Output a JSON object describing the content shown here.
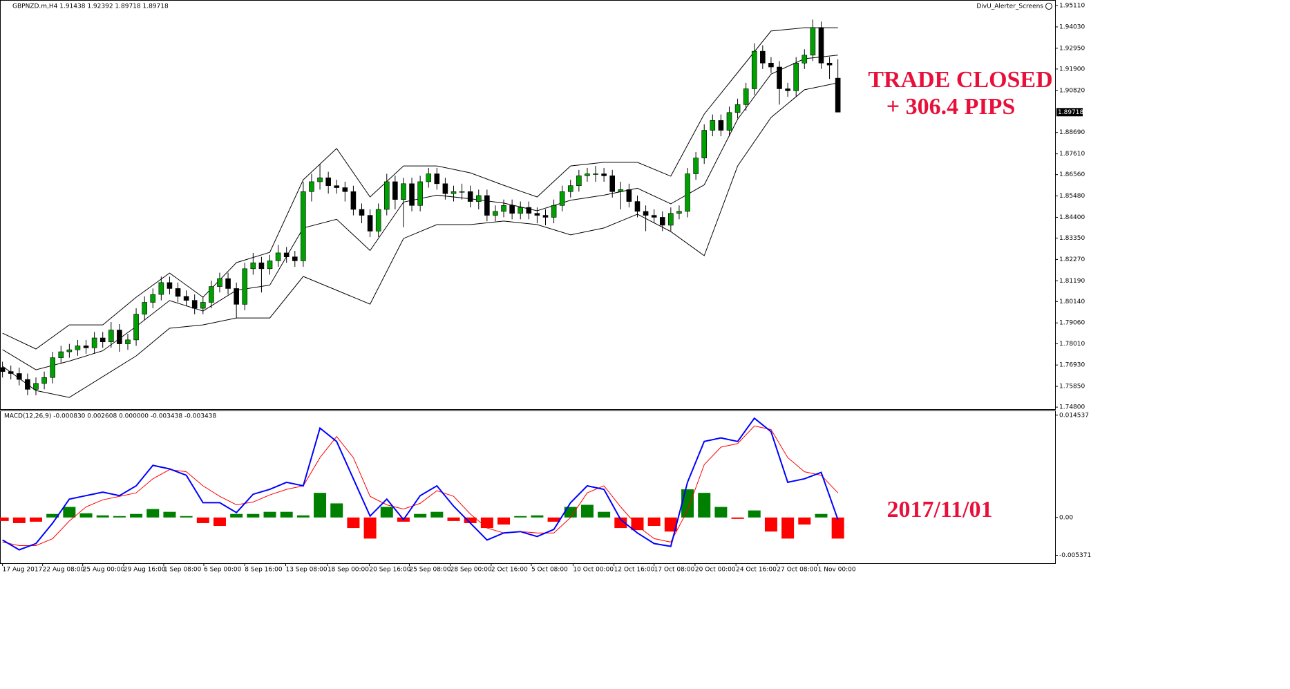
{
  "expert": "DivU_Alerter_Screens",
  "annotations": {
    "trade": "TRADE CLOSED",
    "pips": "+ 306.4 PIPS",
    "date": "2017/11/01"
  },
  "chart_data": [
    {
      "type": "candlestick",
      "title": "GBPNZD.m,H4  1.91438 1.92392 1.89718 1.89718",
      "up_color": "#00a000",
      "down_color": "#000000",
      "wick_color": "#000000",
      "xlim": [
        -0.3,
        126
      ],
      "ylim": [
        1.747,
        1.9539
      ],
      "open": [
        1.768,
        1.766,
        1.765,
        1.762,
        1.757,
        1.76,
        1.763,
        1.773,
        1.776,
        1.777,
        1.779,
        1.778,
        1.783,
        1.781,
        1.787,
        1.78,
        1.782,
        1.795,
        1.801,
        1.805,
        1.811,
        1.808,
        1.804,
        1.802,
        1.798,
        1.801,
        1.809,
        1.813,
        1.808,
        1.8,
        1.818,
        1.821,
        1.818,
        1.822,
        1.826,
        1.824,
        1.822,
        1.857,
        1.862,
        1.864,
        1.86,
        1.859,
        1.857,
        1.848,
        1.845,
        1.837,
        1.848,
        1.862,
        1.853,
        1.861,
        1.85,
        1.862,
        1.866,
        1.861,
        1.856,
        1.857,
        1.857,
        1.852,
        1.855,
        1.845,
        1.847,
        1.85,
        1.846,
        1.849,
        1.846,
        1.845,
        1.844,
        1.85,
        1.857,
        1.86,
        1.865,
        1.866,
        1.866,
        1.865,
        1.857,
        1.858,
        1.852,
        1.847,
        1.845,
        1.844,
        1.84,
        1.846,
        1.847,
        1.866,
        1.874,
        1.888,
        1.893,
        1.888,
        1.897,
        1.901,
        1.909,
        1.928,
        1.922,
        1.92,
        1.909,
        1.908,
        1.922,
        1.926,
        1.94,
        1.922,
        1.91438
      ],
      "high": [
        1.771,
        1.769,
        1.768,
        1.765,
        1.763,
        1.766,
        1.776,
        1.779,
        1.78,
        1.782,
        1.782,
        1.786,
        1.786,
        1.791,
        1.79,
        1.785,
        1.798,
        1.804,
        1.808,
        1.814,
        1.814,
        1.811,
        1.807,
        1.805,
        1.804,
        1.812,
        1.816,
        1.816,
        1.811,
        1.821,
        1.826,
        1.824,
        1.825,
        1.83,
        1.829,
        1.827,
        1.862,
        1.866,
        1.871,
        1.867,
        1.863,
        1.862,
        1.86,
        1.851,
        1.848,
        1.851,
        1.866,
        1.865,
        1.864,
        1.864,
        1.865,
        1.869,
        1.869,
        1.864,
        1.86,
        1.861,
        1.86,
        1.858,
        1.858,
        1.85,
        1.853,
        1.853,
        1.852,
        1.852,
        1.849,
        1.848,
        1.853,
        1.86,
        1.863,
        1.868,
        1.869,
        1.87,
        1.869,
        1.868,
        1.862,
        1.861,
        1.855,
        1.85,
        1.848,
        1.847,
        1.849,
        1.85,
        1.869,
        1.877,
        1.891,
        1.896,
        1.896,
        1.9,
        1.904,
        1.912,
        1.932,
        1.931,
        1.925,
        1.923,
        1.912,
        1.925,
        1.929,
        1.944,
        1.943,
        1.925,
        1.92392
      ],
      "low": [
        1.763,
        1.762,
        1.759,
        1.754,
        1.754,
        1.757,
        1.76,
        1.77,
        1.773,
        1.774,
        1.775,
        1.775,
        1.778,
        1.778,
        1.776,
        1.777,
        1.779,
        1.792,
        1.798,
        1.802,
        1.805,
        1.801,
        1.799,
        1.795,
        1.795,
        1.798,
        1.806,
        1.805,
        1.793,
        1.797,
        1.815,
        1.806,
        1.815,
        1.819,
        1.821,
        1.819,
        1.819,
        1.852,
        1.858,
        1.856,
        1.856,
        1.852,
        1.845,
        1.841,
        1.834,
        1.834,
        1.845,
        1.848,
        1.839,
        1.847,
        1.847,
        1.859,
        1.858,
        1.853,
        1.852,
        1.853,
        1.849,
        1.848,
        1.842,
        1.842,
        1.844,
        1.843,
        1.843,
        1.843,
        1.841,
        1.84,
        1.841,
        1.847,
        1.854,
        1.857,
        1.862,
        1.862,
        1.862,
        1.854,
        1.848,
        1.849,
        1.844,
        1.837,
        1.841,
        1.837,
        1.837,
        1.843,
        1.844,
        1.863,
        1.871,
        1.885,
        1.885,
        1.885,
        1.894,
        1.898,
        1.906,
        1.919,
        1.917,
        1.901,
        1.905,
        1.905,
        1.919,
        1.923,
        1.919,
        1.914,
        1.89718
      ],
      "close": [
        1.766,
        1.765,
        1.762,
        1.757,
        1.76,
        1.763,
        1.773,
        1.776,
        1.777,
        1.779,
        1.778,
        1.783,
        1.781,
        1.787,
        1.78,
        1.782,
        1.795,
        1.801,
        1.805,
        1.811,
        1.808,
        1.804,
        1.802,
        1.798,
        1.801,
        1.809,
        1.813,
        1.808,
        1.8,
        1.818,
        1.821,
        1.818,
        1.822,
        1.826,
        1.824,
        1.822,
        1.857,
        1.862,
        1.864,
        1.86,
        1.859,
        1.857,
        1.848,
        1.845,
        1.837,
        1.848,
        1.862,
        1.853,
        1.861,
        1.85,
        1.862,
        1.866,
        1.861,
        1.856,
        1.857,
        1.857,
        1.852,
        1.855,
        1.845,
        1.847,
        1.85,
        1.846,
        1.849,
        1.846,
        1.845,
        1.844,
        1.85,
        1.857,
        1.86,
        1.865,
        1.866,
        1.866,
        1.865,
        1.857,
        1.858,
        1.852,
        1.847,
        1.845,
        1.844,
        1.84,
        1.846,
        1.847,
        1.866,
        1.874,
        1.888,
        1.893,
        1.888,
        1.897,
        1.901,
        1.909,
        1.928,
        1.922,
        1.92,
        1.909,
        1.908,
        1.922,
        1.926,
        1.94,
        1.922,
        1.921,
        1.89718
      ],
      "bands": {
        "color": "#000000",
        "x": [
          0,
          4,
          8,
          12,
          16,
          20,
          24,
          28,
          32,
          36,
          40,
          44,
          48,
          52,
          56,
          60,
          64,
          68,
          72,
          76,
          80,
          84,
          88,
          92,
          96,
          100
        ],
        "upper": [
          1.7854,
          1.7774,
          1.7896,
          1.7896,
          1.8036,
          1.8158,
          1.8036,
          1.8211,
          1.8263,
          1.863,
          1.8788,
          1.8543,
          1.87,
          1.87,
          1.8665,
          1.8602,
          1.8543,
          1.87,
          1.8718,
          1.8718,
          1.8648,
          1.8962,
          1.9172,
          1.9382,
          1.9399,
          1.9399
        ],
        "middle": [
          1.7771,
          1.7669,
          1.7713,
          1.7765,
          1.7888,
          1.8019,
          1.7966,
          1.8071,
          1.8097,
          1.8386,
          1.843,
          1.8272,
          1.8517,
          1.8552,
          1.8534,
          1.8512,
          1.8473,
          1.8526,
          1.8552,
          1.8587,
          1.8508,
          1.8604,
          1.8936,
          1.9164,
          1.9242,
          1.926
        ],
        "lower": [
          1.7687,
          1.7564,
          1.7529,
          1.7634,
          1.7739,
          1.7879,
          1.7896,
          1.7931,
          1.7931,
          1.8141,
          1.8071,
          1.8001,
          1.8333,
          1.8403,
          1.8403,
          1.8421,
          1.8403,
          1.8351,
          1.8386,
          1.8456,
          1.8368,
          1.8246,
          1.87,
          1.8945,
          1.9085,
          1.912
        ]
      },
      "last_price": 1.89718,
      "yticks": [
        {
          "value": 1.9511,
          "label": "1.95110"
        },
        {
          "value": 1.9403,
          "label": "1.94030"
        },
        {
          "value": 1.9295,
          "label": "1.92950"
        },
        {
          "value": 1.919,
          "label": "1.91900"
        },
        {
          "value": 1.9082,
          "label": "1.90820"
        },
        {
          "value": 1.8869,
          "label": "1.88690"
        },
        {
          "value": 1.8761,
          "label": "1.87610"
        },
        {
          "value": 1.8656,
          "label": "1.86560"
        },
        {
          "value": 1.8548,
          "label": "1.85480"
        },
        {
          "value": 1.844,
          "label": "1.84400"
        },
        {
          "value": 1.8335,
          "label": "1.83350"
        },
        {
          "value": 1.8227,
          "label": "1.82270"
        },
        {
          "value": 1.8119,
          "label": "1.81190"
        },
        {
          "value": 1.8014,
          "label": "1.80140"
        },
        {
          "value": 1.7906,
          "label": "1.79060"
        },
        {
          "value": 1.7801,
          "label": "1.78010"
        },
        {
          "value": 1.7693,
          "label": "1.76930"
        },
        {
          "value": 1.7585,
          "label": "1.75850"
        },
        {
          "value": 1.748,
          "label": "1.74800"
        }
      ]
    },
    {
      "type": "macd",
      "title": "MACD(12,26,9) -0.000830 0.002608 0.000000 -0.003438 -0.003438",
      "xlim": [
        -0.3,
        126
      ],
      "ylim": [
        -0.0065,
        0.0152
      ],
      "yticks": [
        0.014537,
        {
          "value": 0,
          "label": "0.00"
        },
        -0.005371
      ],
      "xticks": [
        {
          "value": 0,
          "label": "17 Aug 2017"
        },
        {
          "value": 4.8,
          "label": "22 Aug 08:00"
        },
        {
          "value": 9.6,
          "label": "25 Aug 00:00"
        },
        {
          "value": 14.5,
          "label": "29 Aug 16:00"
        },
        {
          "value": 19.3,
          "label": "1 Sep 08:00"
        },
        {
          "value": 24.1,
          "label": "6 Sep 00:00"
        },
        {
          "value": 29,
          "label": "8 Sep 16:00"
        },
        {
          "value": 33.9,
          "label": "13 Sep 08:00"
        },
        {
          "value": 38.9,
          "label": "18 Sep 00:00"
        },
        {
          "value": 43.9,
          "label": "20 Sep 16:00"
        },
        {
          "value": 48.7,
          "label": "25 Sep 08:00"
        },
        {
          "value": 53.6,
          "label": "28 Sep 00:00"
        },
        {
          "value": 58.5,
          "label": "2 Oct 16:00"
        },
        {
          "value": 63.3,
          "label": "5 Oct 08:00"
        },
        {
          "value": 68.3,
          "label": "10 Oct 00:00"
        },
        {
          "value": 73.2,
          "label": "12 Oct 16:00"
        },
        {
          "value": 78,
          "label": "17 Oct 08:00"
        },
        {
          "value": 82.9,
          "label": "20 Oct 00:00"
        },
        {
          "value": 87.8,
          "label": "24 Oct 16:00"
        },
        {
          "value": 92.7,
          "label": "27 Oct 08:00"
        },
        {
          "value": 97.6,
          "label": "1 Nov 00:00"
        }
      ],
      "x": [
        0,
        2,
        4,
        6,
        8,
        10,
        12,
        14,
        16,
        18,
        20,
        22,
        24,
        26,
        28,
        30,
        32,
        34,
        36,
        38,
        40,
        42,
        44,
        46,
        48,
        50,
        52,
        54,
        56,
        58,
        60,
        62,
        64,
        66,
        68,
        70,
        72,
        74,
        76,
        78,
        80,
        82,
        84,
        86,
        88,
        90,
        92,
        94,
        96,
        98,
        100
      ],
      "main": {
        "color": "#0000ff",
        "values": [
          -0.0032,
          -0.0046,
          -0.0037,
          -0.0008,
          0.0026,
          0.0031,
          0.0036,
          0.0031,
          0.0045,
          0.0074,
          0.0069,
          0.006,
          0.0021,
          0.0021,
          0.0007,
          0.0033,
          0.004,
          0.005,
          0.0045,
          0.0127,
          0.0108,
          0.0055,
          0.0002,
          0.0026,
          -0.0003,
          0.0031,
          0.0045,
          0.0016,
          -0.0008,
          -0.0032,
          -0.0022,
          -0.002,
          -0.0027,
          -0.0017,
          0.0021,
          0.0045,
          0.004,
          -0.0003,
          -0.0022,
          -0.0037,
          -0.0041,
          0.005,
          0.0108,
          0.0113,
          0.0108,
          0.0141,
          0.0122,
          0.005,
          0.0055,
          0.0064,
          -0.0003
        ]
      },
      "signal": {
        "color": "#ff0000",
        "values": [
          -0.0035,
          -0.004,
          -0.004,
          -0.003,
          -0.0005,
          0.0015,
          0.0025,
          0.003,
          0.0035,
          0.0055,
          0.0068,
          0.0065,
          0.0045,
          0.003,
          0.0018,
          0.0022,
          0.0032,
          0.004,
          0.0045,
          0.0085,
          0.0115,
          0.0085,
          0.003,
          0.0018,
          0.0012,
          0.002,
          0.0038,
          0.003,
          0.0005,
          -0.0015,
          -0.0022,
          -0.002,
          -0.0022,
          -0.0022,
          0.0,
          0.0035,
          0.0045,
          0.0015,
          -0.0012,
          -0.003,
          -0.0035,
          0.001,
          0.0075,
          0.01,
          0.0105,
          0.013,
          0.0125,
          0.0085,
          0.0065,
          0.006,
          0.0035
        ]
      },
      "histogram": {
        "up_color": "#008000",
        "down_color": "#ff0000",
        "values": [
          -0.0005,
          -0.0008,
          -0.0006,
          0.0005,
          0.0015,
          0.0006,
          0.0003,
          0.0002,
          0.0005,
          0.0012,
          0.0008,
          0.0002,
          -0.0008,
          -0.0012,
          0.0005,
          0.0005,
          0.0008,
          0.0008,
          0.0003,
          0.0035,
          0.002,
          -0.0015,
          -0.003,
          0.0015,
          -0.0006,
          0.0005,
          0.0008,
          -0.0005,
          -0.0008,
          -0.0015,
          -0.001,
          0.0002,
          0.0003,
          -0.0006,
          0.0015,
          0.0018,
          0.0008,
          -0.0015,
          -0.0018,
          -0.0012,
          -0.002,
          0.004,
          0.0035,
          0.0015,
          -0.0002,
          0.001,
          -0.002,
          -0.003,
          -0.001,
          0.0005,
          -0.003
        ]
      }
    }
  ]
}
